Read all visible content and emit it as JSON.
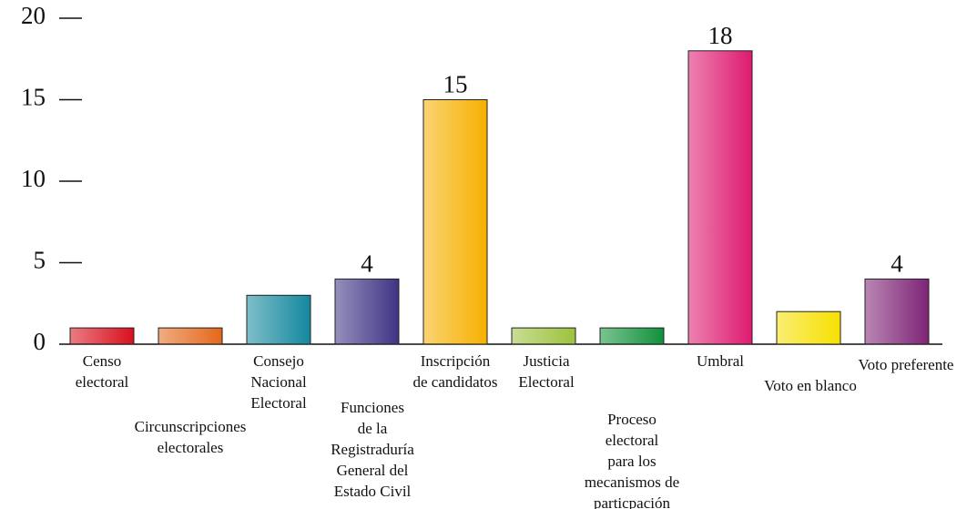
{
  "chart_data": {
    "type": "bar",
    "categories": [
      "Censo\nelectoral",
      "Circunscripciones\nelectorales",
      "Consejo\nNacional\nElectoral",
      "Funciones\nde la\nRegistraduría\nGeneral del\nEstado Civil",
      "Inscripción\nde candidatos",
      "Justicia\nElectoral",
      "Proceso\nelectoral\npara los\nmecanismos de\nparticpación\nciudadana",
      "Umbral",
      "Voto en blanco",
      "Voto preferente"
    ],
    "values": [
      1,
      1,
      3,
      4,
      15,
      1,
      1,
      18,
      2,
      4
    ],
    "value_labels": [
      null,
      null,
      null,
      "4",
      "15",
      null,
      null,
      "18",
      null,
      "4"
    ],
    "colors": [
      "#d8101e",
      "#e4681a",
      "#14889e",
      "#3e3484",
      "#f6b000",
      "#9cc23c",
      "#10913a",
      "#de1a70",
      "#f6e000",
      "#7e2476"
    ],
    "ylim": [
      0,
      20
    ],
    "yticks": [
      0,
      5,
      10,
      15,
      20
    ]
  }
}
